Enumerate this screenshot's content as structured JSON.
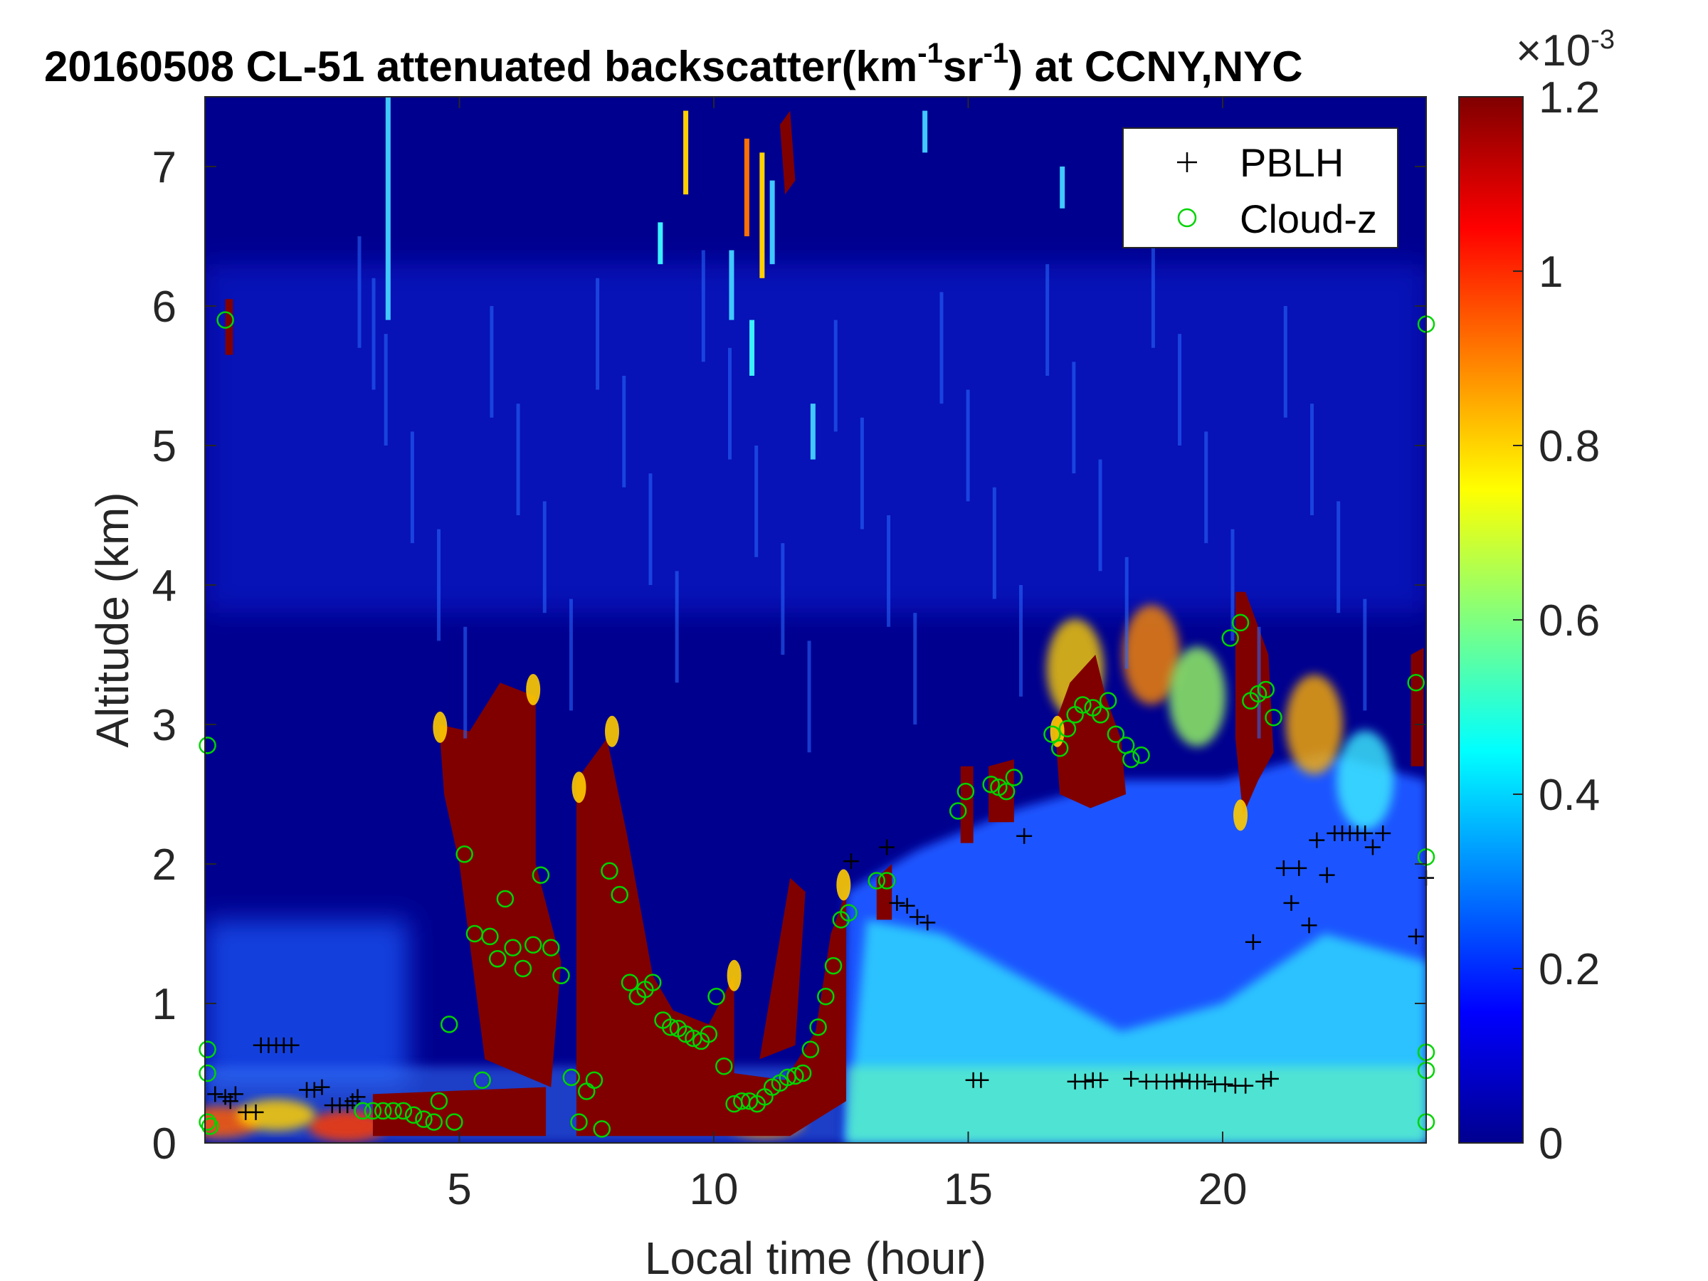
{
  "chart_data": {
    "type": "heatmap",
    "title_main": "20160508  CL-51 attenuated backscatter(km",
    "title_sup1": "-1",
    "title_mid": "sr",
    "title_sup2": "-1",
    "title_end": ") at CCNY,NYC",
    "xlabel": "Local time (hour)",
    "ylabel": "Altitude (km)",
    "xlim": [
      0,
      24
    ],
    "ylim": [
      0,
      7.5
    ],
    "xticks": [
      "5",
      "10",
      "15",
      "20"
    ],
    "yticks": [
      "0",
      "1",
      "2",
      "3",
      "4",
      "5",
      "6",
      "7"
    ],
    "colorbar": {
      "range": [
        0,
        0.0012
      ],
      "ticks": [
        "0",
        "0.2",
        "0.4",
        "0.6",
        "0.8",
        "1",
        "1.2"
      ],
      "exponent_base": "×10",
      "exponent_sup": "-3"
    },
    "legend": {
      "placement": "top-right",
      "entries": [
        {
          "label": "PBLH",
          "marker": "+",
          "color": "#000000"
        },
        {
          "label": "Cloud-z",
          "marker": "o",
          "color": "#00d400"
        }
      ]
    },
    "pblh": [
      [
        0.2,
        0.35
      ],
      [
        0.4,
        0.33
      ],
      [
        0.5,
        0.3
      ],
      [
        0.6,
        0.35
      ],
      [
        0.8,
        0.22
      ],
      [
        1,
        0.22
      ],
      [
        1.1,
        0.7
      ],
      [
        1.25,
        0.7
      ],
      [
        1.4,
        0.7
      ],
      [
        1.55,
        0.7
      ],
      [
        1.7,
        0.7
      ],
      [
        2.0,
        0.38
      ],
      [
        2.15,
        0.38
      ],
      [
        2.3,
        0.4
      ],
      [
        2.5,
        0.27
      ],
      [
        2.65,
        0.27
      ],
      [
        2.8,
        0.27
      ],
      [
        2.9,
        0.3
      ],
      [
        3.0,
        0.33
      ],
      [
        12.7,
        2.02
      ],
      [
        13.4,
        2.12
      ],
      [
        13.6,
        1.72
      ],
      [
        13.8,
        1.7
      ],
      [
        14.0,
        1.62
      ],
      [
        14.2,
        1.58
      ],
      [
        15.1,
        0.45
      ],
      [
        15.25,
        0.45
      ],
      [
        16.1,
        2.2
      ],
      [
        17.1,
        0.44
      ],
      [
        17.3,
        0.44
      ],
      [
        17.45,
        0.45
      ],
      [
        17.6,
        0.45
      ],
      [
        18.2,
        0.46
      ],
      [
        18.5,
        0.44
      ],
      [
        18.7,
        0.44
      ],
      [
        18.9,
        0.44
      ],
      [
        19.05,
        0.44
      ],
      [
        19.2,
        0.45
      ],
      [
        19.35,
        0.44
      ],
      [
        19.5,
        0.44
      ],
      [
        19.65,
        0.44
      ],
      [
        19.85,
        0.42
      ],
      [
        20.05,
        0.42
      ],
      [
        20.25,
        0.41
      ],
      [
        20.45,
        0.41
      ],
      [
        20.8,
        0.44
      ],
      [
        20.95,
        0.46
      ],
      [
        20.6,
        1.44
      ],
      [
        21.2,
        1.97
      ],
      [
        21.35,
        1.72
      ],
      [
        21.5,
        1.97
      ],
      [
        21.7,
        1.56
      ],
      [
        21.85,
        2.17
      ],
      [
        22.05,
        1.92
      ],
      [
        22.2,
        2.22
      ],
      [
        22.35,
        2.22
      ],
      [
        22.5,
        2.22
      ],
      [
        22.65,
        2.22
      ],
      [
        22.8,
        2.22
      ],
      [
        22.95,
        2.12
      ],
      [
        23.15,
        2.22
      ],
      [
        23.8,
        1.48
      ],
      [
        24.0,
        1.9
      ]
    ],
    "cloud_z": [
      [
        0.05,
        0.67
      ],
      [
        0.05,
        0.5
      ],
      [
        0.05,
        0.15
      ],
      [
        0.1,
        0.12
      ],
      [
        0.05,
        2.85
      ],
      [
        0.4,
        5.9
      ],
      [
        3.1,
        0.23
      ],
      [
        3.3,
        0.23
      ],
      [
        3.5,
        0.23
      ],
      [
        3.7,
        0.23
      ],
      [
        3.9,
        0.23
      ],
      [
        4.1,
        0.2
      ],
      [
        4.3,
        0.17
      ],
      [
        4.5,
        0.15
      ],
      [
        4.6,
        0.3
      ],
      [
        4.8,
        0.85
      ],
      [
        4.9,
        0.15
      ],
      [
        5.1,
        2.07
      ],
      [
        5.3,
        1.5
      ],
      [
        5.45,
        0.45
      ],
      [
        5.6,
        1.48
      ],
      [
        5.75,
        1.32
      ],
      [
        5.9,
        1.75
      ],
      [
        6.05,
        1.4
      ],
      [
        6.25,
        1.25
      ],
      [
        6.45,
        1.42
      ],
      [
        6.6,
        1.92
      ],
      [
        6.8,
        1.4
      ],
      [
        7.0,
        1.2
      ],
      [
        7.2,
        0.47
      ],
      [
        7.35,
        0.15
      ],
      [
        7.5,
        0.37
      ],
      [
        7.65,
        0.45
      ],
      [
        7.8,
        0.1
      ],
      [
        7.95,
        1.95
      ],
      [
        8.15,
        1.78
      ],
      [
        8.35,
        1.15
      ],
      [
        8.5,
        1.05
      ],
      [
        8.65,
        1.1
      ],
      [
        8.8,
        1.15
      ],
      [
        9.0,
        0.88
      ],
      [
        9.15,
        0.83
      ],
      [
        9.3,
        0.82
      ],
      [
        9.45,
        0.78
      ],
      [
        9.6,
        0.75
      ],
      [
        9.75,
        0.73
      ],
      [
        9.9,
        0.78
      ],
      [
        10.05,
        1.05
      ],
      [
        10.2,
        0.55
      ],
      [
        10.4,
        0.28
      ],
      [
        10.55,
        0.3
      ],
      [
        10.7,
        0.3
      ],
      [
        10.85,
        0.28
      ],
      [
        11.0,
        0.33
      ],
      [
        11.15,
        0.4
      ],
      [
        11.3,
        0.43
      ],
      [
        11.45,
        0.47
      ],
      [
        11.6,
        0.48
      ],
      [
        11.75,
        0.5
      ],
      [
        11.9,
        0.67
      ],
      [
        12.05,
        0.83
      ],
      [
        12.2,
        1.05
      ],
      [
        12.35,
        1.27
      ],
      [
        12.5,
        1.6
      ],
      [
        12.65,
        1.65
      ],
      [
        13.2,
        1.88
      ],
      [
        13.4,
        1.88
      ],
      [
        14.8,
        2.38
      ],
      [
        14.95,
        2.52
      ],
      [
        15.45,
        2.57
      ],
      [
        15.6,
        2.55
      ],
      [
        15.75,
        2.52
      ],
      [
        15.9,
        2.62
      ],
      [
        16.65,
        2.93
      ],
      [
        16.8,
        2.83
      ],
      [
        16.95,
        2.97
      ],
      [
        17.1,
        3.07
      ],
      [
        17.25,
        3.14
      ],
      [
        17.45,
        3.12
      ],
      [
        17.6,
        3.07
      ],
      [
        17.75,
        3.17
      ],
      [
        17.9,
        2.93
      ],
      [
        18.1,
        2.85
      ],
      [
        18.2,
        2.75
      ],
      [
        18.4,
        2.78
      ],
      [
        20.15,
        3.62
      ],
      [
        20.35,
        3.73
      ],
      [
        20.55,
        3.17
      ],
      [
        20.7,
        3.22
      ],
      [
        20.85,
        3.25
      ],
      [
        21.0,
        3.05
      ],
      [
        23.8,
        3.3
      ],
      [
        24.0,
        5.87
      ],
      [
        24.0,
        2.05
      ],
      [
        24.0,
        0.65
      ],
      [
        24.0,
        0.52
      ],
      [
        24.0,
        0.15
      ]
    ]
  }
}
